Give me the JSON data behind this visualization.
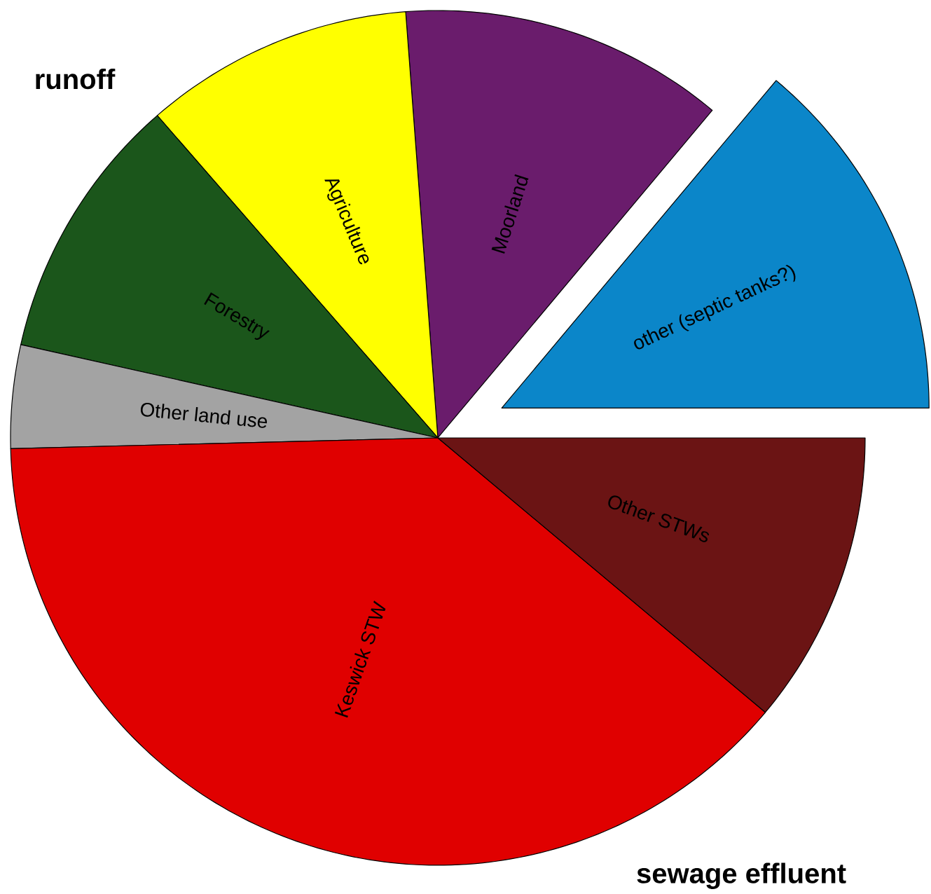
{
  "chart_data": {
    "type": "pie",
    "categories": [
      "other (septic tanks?)",
      "Moorland",
      "Agriculture",
      "Forestry",
      "Other land use",
      "Keswick STW",
      "Other STWs"
    ],
    "values": [
      13.9,
      12.3,
      10.2,
      10.1,
      3.9,
      38.5,
      11.1
    ],
    "colors": [
      "#0b86c9",
      "#6a1c6c",
      "#ffff00",
      "#1b561b",
      "#a3a3a3",
      "#e00000",
      "#6b1414"
    ],
    "annotations": [
      "runoff",
      "sewage effluent"
    ]
  }
}
